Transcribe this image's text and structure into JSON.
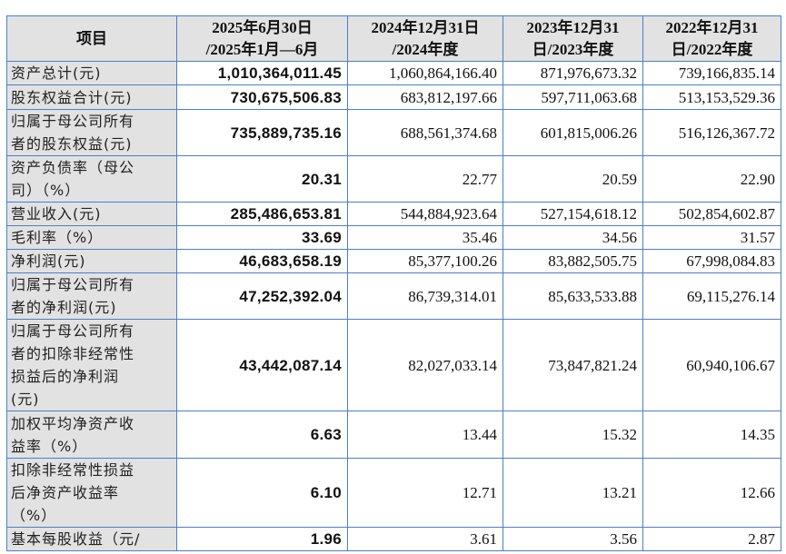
{
  "header": [
    "项目",
    "2025年6月30日\n/2025年1月—6月",
    "2024年12月31日\n/2024年度",
    "2023年12月31\n日/2023年度",
    "2022年12月31\n日/2022年度"
  ],
  "rows": [
    {
      "label": "资产总计(元)",
      "values": [
        "1,010,364,011.45",
        "1,060,864,166.40",
        "871,976,673.32",
        "739,166,835.14"
      ]
    },
    {
      "label": "股东权益合计(元)",
      "values": [
        "730,675,506.83",
        "683,812,197.66",
        "597,711,063.68",
        "513,153,529.36"
      ]
    },
    {
      "label": "归属于母公司所有\n者的股东权益(元)",
      "values": [
        "735,889,735.16",
        "688,561,374.68",
        "601,815,006.26",
        "516,126,367.72"
      ]
    },
    {
      "label": "资产负债率（母公\n司）（%）",
      "values": [
        "20.31",
        "22.77",
        "20.59",
        "22.90"
      ]
    },
    {
      "label": "营业收入(元)",
      "values": [
        "285,486,653.81",
        "544,884,923.64",
        "527,154,618.12",
        "502,854,602.87"
      ]
    },
    {
      "label": "毛利率（%）",
      "values": [
        "33.69",
        "35.46",
        "34.56",
        "31.57"
      ]
    },
    {
      "label": "净利润(元)",
      "values": [
        "46,683,658.19",
        "85,377,100.26",
        "83,882,505.75",
        "67,998,084.83"
      ]
    },
    {
      "label": "归属于母公司所有\n者的净利润(元)",
      "values": [
        "47,252,392.04",
        "86,739,314.01",
        "85,633,533.88",
        "69,115,276.14"
      ]
    },
    {
      "label": "归属于母公司所有\n者的扣除非经常性\n损益后的净利润\n(元)",
      "values": [
        "43,442,087.14",
        "82,027,033.14",
        "73,847,821.24",
        "60,940,106.67"
      ]
    },
    {
      "label": "加权平均净资产收\n益率（%）",
      "values": [
        "6.63",
        "13.44",
        "15.32",
        "14.35"
      ]
    },
    {
      "label": "扣除非经常性损益\n后净资产收益率\n（%）",
      "values": [
        "6.10",
        "12.71",
        "13.21",
        "12.66"
      ]
    },
    {
      "label": "基本每股收益（元/",
      "values": [
        "1.96",
        "3.61",
        "3.56",
        "2.87"
      ]
    }
  ]
}
